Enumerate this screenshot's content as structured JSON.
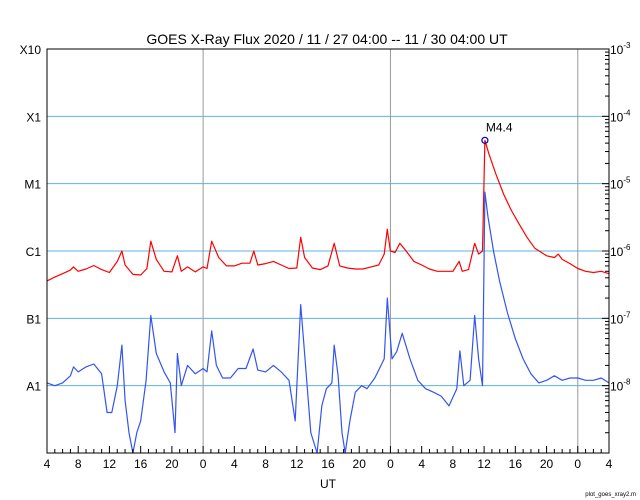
{
  "chart_data": {
    "type": "line",
    "title": "GOES X-Ray Flux   2020 / 11 / 27   04:00 -- 11 / 30   04:00   UT",
    "xlabel": "UT",
    "ylabel": "",
    "x_range_hours": [
      0,
      72
    ],
    "x_ticks": [
      {
        "h": 0,
        "label": "4"
      },
      {
        "h": 4,
        "label": "8"
      },
      {
        "h": 8,
        "label": "12"
      },
      {
        "h": 12,
        "label": "16"
      },
      {
        "h": 16,
        "label": "20"
      },
      {
        "h": 20,
        "label": "0"
      },
      {
        "h": 24,
        "label": "4"
      },
      {
        "h": 28,
        "label": "8"
      },
      {
        "h": 32,
        "label": "12"
      },
      {
        "h": 36,
        "label": "16"
      },
      {
        "h": 40,
        "label": "20"
      },
      {
        "h": 44,
        "label": "0"
      },
      {
        "h": 48,
        "label": "4"
      },
      {
        "h": 52,
        "label": "8"
      },
      {
        "h": 56,
        "label": "12"
      },
      {
        "h": 60,
        "label": "16"
      },
      {
        "h": 64,
        "label": "20"
      },
      {
        "h": 68,
        "label": "0"
      },
      {
        "h": 72,
        "label": "4"
      }
    ],
    "day_boundaries_hours": [
      20,
      44,
      68
    ],
    "y_scale": "log",
    "ylim_exp": [
      -9,
      -3
    ],
    "class_labels": [
      {
        "label": "A1",
        "exp": -8
      },
      {
        "label": "B1",
        "exp": -7
      },
      {
        "label": "C1",
        "exp": -6
      },
      {
        "label": "M1",
        "exp": -5
      },
      {
        "label": "X1",
        "exp": -4
      },
      {
        "label": "X10",
        "exp": -3
      }
    ],
    "right_ticks": [
      {
        "mantissa": "10",
        "exp": "-3",
        "value_exp": -3
      },
      {
        "mantissa": "10",
        "exp": "-4",
        "value_exp": -4
      },
      {
        "mantissa": "10",
        "exp": "-5",
        "value_exp": -5
      },
      {
        "mantissa": "10",
        "exp": "-6",
        "value_exp": -6
      },
      {
        "mantissa": "10",
        "exp": "-7",
        "value_exp": -7
      },
      {
        "mantissa": "10",
        "exp": "-8",
        "value_exp": -8
      }
    ],
    "grid": "horizontal at class levels (A1, B1, C1, M1, X1); vertical at day boundaries",
    "annotation": {
      "label": "M4.4",
      "hour": 56.1,
      "flux": 4.4e-05
    },
    "series": [
      {
        "color": "#ff0000",
        "points": [
          [
            0,
            3.6e-07
          ],
          [
            1,
            4.1e-07
          ],
          [
            2,
            4.6e-07
          ],
          [
            3,
            5.2e-07
          ],
          [
            3.4,
            5.8e-07
          ],
          [
            4,
            5e-07
          ],
          [
            5,
            5.4e-07
          ],
          [
            6,
            6.1e-07
          ],
          [
            7,
            5.3e-07
          ],
          [
            8,
            4.8e-07
          ],
          [
            9,
            7e-07
          ],
          [
            9.6,
            1e-06
          ],
          [
            10,
            6.2e-07
          ],
          [
            11,
            4.5e-07
          ],
          [
            12,
            4.4e-07
          ],
          [
            12.8,
            5.5e-07
          ],
          [
            13.3,
            1.4e-06
          ],
          [
            14,
            7.5e-07
          ],
          [
            15,
            5e-07
          ],
          [
            16,
            4.9e-07
          ],
          [
            16.7,
            8.5e-07
          ],
          [
            17.2,
            5e-07
          ],
          [
            18,
            5.8e-07
          ],
          [
            19,
            4.9e-07
          ],
          [
            20,
            5.8e-07
          ],
          [
            20.5,
            5.5e-07
          ],
          [
            21.1,
            1.4e-06
          ],
          [
            22,
            8e-07
          ],
          [
            23,
            6e-07
          ],
          [
            24,
            6e-07
          ],
          [
            25,
            6.6e-07
          ],
          [
            26,
            6.6e-07
          ],
          [
            26.5,
            1e-06
          ],
          [
            27,
            6.2e-07
          ],
          [
            28,
            6.5e-07
          ],
          [
            29,
            7e-07
          ],
          [
            30,
            6.2e-07
          ],
          [
            31,
            5.5e-07
          ],
          [
            32,
            5.6e-07
          ],
          [
            32.5,
            1.6e-06
          ],
          [
            33,
            8e-07
          ],
          [
            34,
            5.6e-07
          ],
          [
            35,
            5.3e-07
          ],
          [
            36,
            6e-07
          ],
          [
            36.8,
            1.3e-06
          ],
          [
            37.5,
            6e-07
          ],
          [
            38.5,
            5.6e-07
          ],
          [
            39.5,
            5.4e-07
          ],
          [
            40.5,
            5.4e-07
          ],
          [
            41.5,
            5.8e-07
          ],
          [
            42.5,
            6.2e-07
          ],
          [
            43.2,
            9e-07
          ],
          [
            43.6,
            2.1e-06
          ],
          [
            44,
            1e-06
          ],
          [
            44.6,
            9.5e-07
          ],
          [
            45.2,
            1.3e-06
          ],
          [
            46,
            1e-06
          ],
          [
            47,
            7e-07
          ],
          [
            48,
            6.2e-07
          ],
          [
            49,
            5.4e-07
          ],
          [
            50,
            5e-07
          ],
          [
            51,
            5e-07
          ],
          [
            52,
            5e-07
          ],
          [
            52.8,
            7e-07
          ],
          [
            53.2,
            5e-07
          ],
          [
            54,
            5.3e-07
          ],
          [
            54.8,
            1.3e-06
          ],
          [
            55.3,
            9e-07
          ],
          [
            55.8,
            1e-06
          ],
          [
            56.1,
            4.4e-05
          ],
          [
            56.6,
            2.8e-05
          ],
          [
            57.5,
            1.4e-05
          ],
          [
            58.5,
            7e-06
          ],
          [
            59.5,
            4e-06
          ],
          [
            60.5,
            2.5e-06
          ],
          [
            61.5,
            1.6e-06
          ],
          [
            62.5,
            1.1e-06
          ],
          [
            64,
            8.5e-07
          ],
          [
            65,
            8e-07
          ],
          [
            65.5,
            9e-07
          ],
          [
            66,
            7.5e-07
          ],
          [
            67,
            6.5e-07
          ],
          [
            68,
            5.5e-07
          ],
          [
            69,
            5e-07
          ],
          [
            70,
            4.8e-07
          ],
          [
            71,
            5e-07
          ],
          [
            72,
            4.6e-07
          ]
        ]
      },
      {
        "color": "#3355ee",
        "points": [
          [
            0,
            1.1e-08
          ],
          [
            1,
            1e-08
          ],
          [
            2,
            1.1e-08
          ],
          [
            3,
            1.4e-08
          ],
          [
            3.4,
            1.9e-08
          ],
          [
            4,
            1.6e-08
          ],
          [
            5,
            1.9e-08
          ],
          [
            6,
            2.1e-08
          ],
          [
            7,
            1.5e-08
          ],
          [
            7.7,
            4e-09
          ],
          [
            8.3,
            4e-09
          ],
          [
            9,
            1e-08
          ],
          [
            9.6,
            4e-08
          ],
          [
            10,
            6e-09
          ],
          [
            10.5,
            2e-09
          ],
          [
            11,
            1e-09
          ],
          [
            11.5,
            2e-09
          ],
          [
            12,
            3e-09
          ],
          [
            12.7,
            1.2e-08
          ],
          [
            13.3,
            1.1e-07
          ],
          [
            14,
            3e-08
          ],
          [
            15,
            1.6e-08
          ],
          [
            15.8,
            1.1e-08
          ],
          [
            16.4,
            2e-09
          ],
          [
            16.7,
            3e-08
          ],
          [
            17.2,
            1e-08
          ],
          [
            18,
            2e-08
          ],
          [
            19,
            1.5e-08
          ],
          [
            20,
            1.8e-08
          ],
          [
            20.5,
            1.6e-08
          ],
          [
            21.1,
            6.5e-08
          ],
          [
            21.7,
            2e-08
          ],
          [
            22.5,
            1.3e-08
          ],
          [
            23.5,
            1.3e-08
          ],
          [
            24.5,
            1.8e-08
          ],
          [
            25.5,
            1.8e-08
          ],
          [
            26.4,
            3.5e-08
          ],
          [
            27,
            1.7e-08
          ],
          [
            28,
            1.6e-08
          ],
          [
            29,
            2e-08
          ],
          [
            30,
            1.6e-08
          ],
          [
            31,
            1.2e-08
          ],
          [
            31.8,
            3e-09
          ],
          [
            32.5,
            1.6e-07
          ],
          [
            33,
            3e-08
          ],
          [
            33.8,
            2e-09
          ],
          [
            34.6,
            1e-09
          ],
          [
            35.2,
            5e-09
          ],
          [
            35.8,
            9e-09
          ],
          [
            36.5,
            1.1e-08
          ],
          [
            36.8,
            4e-08
          ],
          [
            37.3,
            1.4e-08
          ],
          [
            37.8,
            2e-09
          ],
          [
            38.2,
            1e-09
          ],
          [
            38.8,
            3e-09
          ],
          [
            39.5,
            8e-09
          ],
          [
            40.3,
            1e-08
          ],
          [
            41,
            9e-09
          ],
          [
            42,
            1.3e-08
          ],
          [
            43.2,
            2.5e-08
          ],
          [
            43.6,
            2e-07
          ],
          [
            44.2,
            2.5e-08
          ],
          [
            44.8,
            3.2e-08
          ],
          [
            45.5,
            6e-08
          ],
          [
            46.5,
            2.5e-08
          ],
          [
            47.5,
            1.2e-08
          ],
          [
            48.5,
            9e-09
          ],
          [
            49.5,
            8e-09
          ],
          [
            50.5,
            7e-09
          ],
          [
            51.5,
            5e-09
          ],
          [
            52.5,
            9e-09
          ],
          [
            52.9,
            3.3e-08
          ],
          [
            53.4,
            1e-08
          ],
          [
            54.2,
            1.2e-08
          ],
          [
            54.8,
            1.1e-07
          ],
          [
            55.3,
            2.5e-08
          ],
          [
            55.8,
            1e-08
          ],
          [
            56.1,
            7.5e-06
          ],
          [
            56.5,
            3.2e-06
          ],
          [
            57.2,
            1e-06
          ],
          [
            58,
            3.5e-07
          ],
          [
            59,
            1.2e-07
          ],
          [
            60,
            5e-08
          ],
          [
            61,
            2.5e-08
          ],
          [
            62,
            1.5e-08
          ],
          [
            63,
            1.1e-08
          ],
          [
            64,
            1.2e-08
          ],
          [
            65,
            1.4e-08
          ],
          [
            66,
            1.2e-08
          ],
          [
            67,
            1.3e-08
          ],
          [
            68,
            1.3e-08
          ],
          [
            69,
            1.2e-08
          ],
          [
            70,
            1.2e-08
          ],
          [
            71,
            1.3e-08
          ],
          [
            72,
            1.1e-08
          ]
        ]
      }
    ]
  },
  "footer_text": "plot_goes_xray2.m"
}
